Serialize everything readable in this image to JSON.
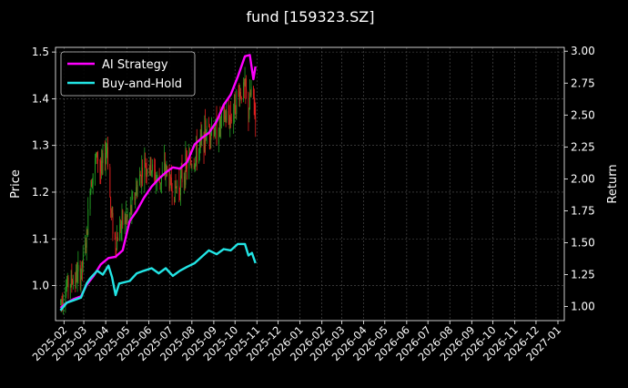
{
  "chart_data": {
    "type": "line",
    "title": "fund [159323.SZ]",
    "ylabel": "Price",
    "y2label": "Return",
    "price_ylim": [
      0.925,
      1.51
    ],
    "return_ylim": [
      0.89,
      3.03
    ],
    "price_ticks": [
      "1.0",
      "1.1",
      "1.2",
      "1.3",
      "1.4",
      "1.5"
    ],
    "return_ticks": [
      "1.00",
      "1.25",
      "1.50",
      "1.75",
      "2.00",
      "2.25",
      "2.50",
      "2.75",
      "3.00"
    ],
    "x_tick_labels": [
      "2025-02",
      "2025-03",
      "2025-04",
      "2025-05",
      "2025-06",
      "2025-07",
      "2025-08",
      "2025-09",
      "2025-10",
      "2025-11",
      "2025-12",
      "2026-01",
      "2026-02",
      "2026-03",
      "2026-04",
      "2026-05",
      "2026-06",
      "2026-07",
      "2026-08",
      "2026-09",
      "2026-10",
      "2026-11",
      "2026-12",
      "2027-01"
    ],
    "grid": true,
    "legend_position": "top-left",
    "series": [
      {
        "name": "AI Strategy",
        "color": "#ff00ff",
        "axis": "return",
        "points": [
          [
            "2025-01-27",
            0.99
          ],
          [
            "2025-02-05",
            1.03
          ],
          [
            "2025-02-15",
            1.06
          ],
          [
            "2025-02-25",
            1.08
          ],
          [
            "2025-03-05",
            1.17
          ],
          [
            "2025-03-15",
            1.24
          ],
          [
            "2025-03-25",
            1.33
          ],
          [
            "2025-04-05",
            1.38
          ],
          [
            "2025-04-15",
            1.39
          ],
          [
            "2025-04-25",
            1.44
          ],
          [
            "2025-05-05",
            1.67
          ],
          [
            "2025-05-15",
            1.75
          ],
          [
            "2025-05-25",
            1.85
          ],
          [
            "2025-06-05",
            1.94
          ],
          [
            "2025-06-15",
            2.0
          ],
          [
            "2025-06-25",
            2.05
          ],
          [
            "2025-07-05",
            2.09
          ],
          [
            "2025-07-15",
            2.08
          ],
          [
            "2025-07-25",
            2.13
          ],
          [
            "2025-08-05",
            2.27
          ],
          [
            "2025-08-15",
            2.32
          ],
          [
            "2025-08-25",
            2.36
          ],
          [
            "2025-09-05",
            2.45
          ],
          [
            "2025-09-15",
            2.58
          ],
          [
            "2025-09-25",
            2.66
          ],
          [
            "2025-10-05",
            2.8
          ],
          [
            "2025-10-15",
            2.96
          ],
          [
            "2025-10-22",
            2.97
          ],
          [
            "2025-10-27",
            2.78
          ],
          [
            "2025-10-30",
            2.88
          ]
        ]
      },
      {
        "name": "Buy-and-Hold",
        "color": "#22e5e5",
        "axis": "return",
        "points": [
          [
            "2025-01-27",
            0.97
          ],
          [
            "2025-02-05",
            1.03
          ],
          [
            "2025-02-15",
            1.05
          ],
          [
            "2025-02-25",
            1.07
          ],
          [
            "2025-03-05",
            1.18
          ],
          [
            "2025-03-10",
            1.22
          ],
          [
            "2025-03-20",
            1.28
          ],
          [
            "2025-03-28",
            1.25
          ],
          [
            "2025-04-05",
            1.32
          ],
          [
            "2025-04-10",
            1.23
          ],
          [
            "2025-04-15",
            1.09
          ],
          [
            "2025-04-20",
            1.18
          ],
          [
            "2025-05-05",
            1.2
          ],
          [
            "2025-05-15",
            1.26
          ],
          [
            "2025-05-25",
            1.28
          ],
          [
            "2025-06-05",
            1.3
          ],
          [
            "2025-06-15",
            1.26
          ],
          [
            "2025-06-25",
            1.3
          ],
          [
            "2025-07-05",
            1.24
          ],
          [
            "2025-07-15",
            1.28
          ],
          [
            "2025-07-25",
            1.31
          ],
          [
            "2025-08-05",
            1.34
          ],
          [
            "2025-08-15",
            1.39
          ],
          [
            "2025-08-25",
            1.44
          ],
          [
            "2025-09-05",
            1.41
          ],
          [
            "2025-09-15",
            1.45
          ],
          [
            "2025-09-25",
            1.44
          ],
          [
            "2025-10-05",
            1.49
          ],
          [
            "2025-10-15",
            1.49
          ],
          [
            "2025-10-20",
            1.4
          ],
          [
            "2025-10-25",
            1.42
          ],
          [
            "2025-10-30",
            1.34
          ]
        ]
      }
    ],
    "candles": {
      "up_color": "#22a022",
      "down_color": "#e02020",
      "price_path": [
        [
          "2025-01-27",
          0.965
        ],
        [
          "2025-02-05",
          1.0
        ],
        [
          "2025-02-15",
          1.015
        ],
        [
          "2025-02-25",
          1.025
        ],
        [
          "2025-03-05",
          1.1
        ],
        [
          "2025-03-10",
          1.22
        ],
        [
          "2025-03-20",
          1.28
        ],
        [
          "2025-03-25",
          1.24
        ],
        [
          "2025-04-03",
          1.3
        ],
        [
          "2025-04-08",
          1.16
        ],
        [
          "2025-04-15",
          1.09
        ],
        [
          "2025-04-22",
          1.13
        ],
        [
          "2025-05-05",
          1.15
        ],
        [
          "2025-05-15",
          1.21
        ],
        [
          "2025-05-25",
          1.26
        ],
        [
          "2025-06-05",
          1.25
        ],
        [
          "2025-06-15",
          1.22
        ],
        [
          "2025-06-25",
          1.25
        ],
        [
          "2025-07-05",
          1.2
        ],
        [
          "2025-07-15",
          1.22
        ],
        [
          "2025-07-25",
          1.26
        ],
        [
          "2025-08-05",
          1.27
        ],
        [
          "2025-08-15",
          1.31
        ],
        [
          "2025-08-25",
          1.34
        ],
        [
          "2025-09-05",
          1.33
        ],
        [
          "2025-09-15",
          1.36
        ],
        [
          "2025-09-25",
          1.36
        ],
        [
          "2025-10-05",
          1.41
        ],
        [
          "2025-10-15",
          1.42
        ],
        [
          "2025-10-20",
          1.37
        ],
        [
          "2025-10-25",
          1.43
        ],
        [
          "2025-10-30",
          1.35
        ]
      ]
    }
  }
}
